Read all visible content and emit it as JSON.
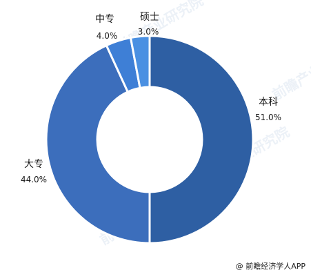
{
  "chart_data": {
    "type": "pie",
    "variant": "donut",
    "categories": [
      "本科",
      "大专",
      "中专",
      "硕士"
    ],
    "values": [
      51.0,
      44.0,
      4.0,
      3.0
    ],
    "value_labels": [
      "51.0%",
      "44.0%",
      "4.0%",
      "3.0%"
    ],
    "colors": [
      "#2e5fa3",
      "#3c6ebc",
      "#3e7fd6",
      "#4a90e2"
    ],
    "title": "",
    "legend": "none"
  },
  "credit": "@ 前瞻经济学人APP",
  "watermark": "前瞻产业研究院"
}
